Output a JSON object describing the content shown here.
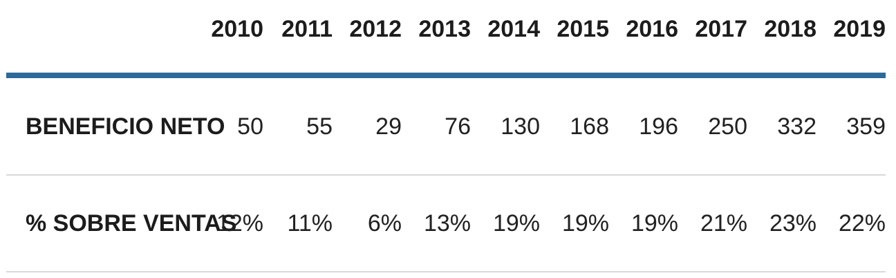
{
  "table": {
    "corner": "",
    "years": [
      "2010",
      "2011",
      "2012",
      "2013",
      "2014",
      "2015",
      "2016",
      "2017",
      "2018",
      "2019"
    ],
    "rows": [
      {
        "label": "BENEFICIO NETO",
        "values": [
          "50",
          "55",
          "29",
          "76",
          "130",
          "168",
          "196",
          "250",
          "332",
          "359"
        ]
      },
      {
        "label": "% SOBRE VENTAS",
        "values": [
          "12%",
          "11%",
          "6%",
          "13%",
          "19%",
          "19%",
          "19%",
          "21%",
          "23%",
          "22%"
        ]
      }
    ],
    "colors": {
      "accent_rule": "#2b6a99",
      "divider": "#d9d9d9",
      "header_text": "#1c1c1c",
      "value_text": "#212121"
    }
  },
  "chart_data": {
    "type": "table",
    "title": "",
    "categories": [
      "2010",
      "2011",
      "2012",
      "2013",
      "2014",
      "2015",
      "2016",
      "2017",
      "2018",
      "2019"
    ],
    "series": [
      {
        "name": "BENEFICIO NETO",
        "values": [
          50,
          55,
          29,
          76,
          130,
          168,
          196,
          250,
          332,
          359
        ]
      },
      {
        "name": "% SOBRE VENTAS",
        "values_pct": [
          12,
          11,
          6,
          13,
          19,
          19,
          19,
          21,
          23,
          22
        ]
      }
    ],
    "layout": {
      "header_rule_color": "#2b6a99",
      "row_divider_color": "#d9d9d9",
      "value_alignment": "right"
    }
  }
}
